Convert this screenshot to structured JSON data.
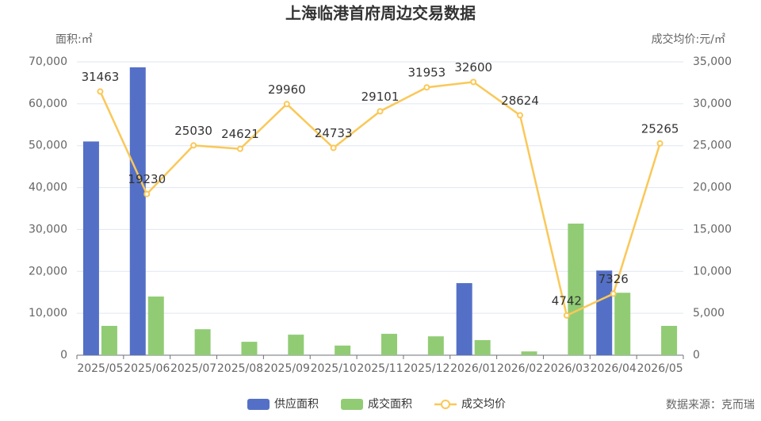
{
  "chart_data": {
    "type": "bar-line",
    "title": "上海临港首府周边交易数据",
    "y_label": "面积:㎡",
    "y2_label": "成交均价:元/㎡",
    "source": "数据来源：克而瑞",
    "categories": [
      "2025/05",
      "2025/06",
      "2025/07",
      "2025/08",
      "2025/09",
      "2025/10",
      "2025/11",
      "2025/12",
      "2026/01",
      "2026/02",
      "2026/03",
      "2026/04",
      "2026/05"
    ],
    "series": [
      {
        "name": "供应面积",
        "type": "bar",
        "color": "#5470c6",
        "values": [
          51000,
          68700,
          0,
          0,
          0,
          0,
          0,
          0,
          17200,
          0,
          0,
          20200,
          0
        ]
      },
      {
        "name": "成交面积",
        "type": "bar",
        "color": "#91cc75",
        "values": [
          7000,
          14000,
          6200,
          3200,
          4900,
          2300,
          5100,
          4500,
          3600,
          900,
          31400,
          14900,
          7000
        ]
      },
      {
        "name": "成交均价",
        "type": "line",
        "axis": "y2",
        "color": "#fac858",
        "values": [
          31463,
          19230,
          25030,
          24621,
          29960,
          24733,
          29101,
          31953,
          32600,
          28624,
          4742,
          7326,
          25265
        ]
      }
    ],
    "ylim": [
      0,
      70000
    ],
    "yticks": [
      0,
      {
        "value": 10000,
        "label": "10,000"
      },
      {
        "value": 20000,
        "label": "20,000"
      },
      {
        "value": 30000,
        "label": "30,000"
      },
      {
        "value": 40000,
        "label": "40,000"
      },
      {
        "value": 50000,
        "label": "50,000"
      },
      {
        "value": 60000,
        "label": "60,000"
      },
      {
        "value": 70000,
        "label": "70,000"
      }
    ],
    "y2lim": [
      0,
      35000
    ],
    "y2ticks": [
      0,
      {
        "value": 5000,
        "label": "5,000"
      },
      {
        "value": 10000,
        "label": "10,000"
      },
      {
        "value": 15000,
        "label": "15,000"
      },
      {
        "value": 20000,
        "label": "20,000"
      },
      {
        "value": 25000,
        "label": "25,000"
      },
      {
        "value": 30000,
        "label": "30,000"
      },
      {
        "value": 35000,
        "label": "35,000"
      }
    ],
    "grid": true
  }
}
